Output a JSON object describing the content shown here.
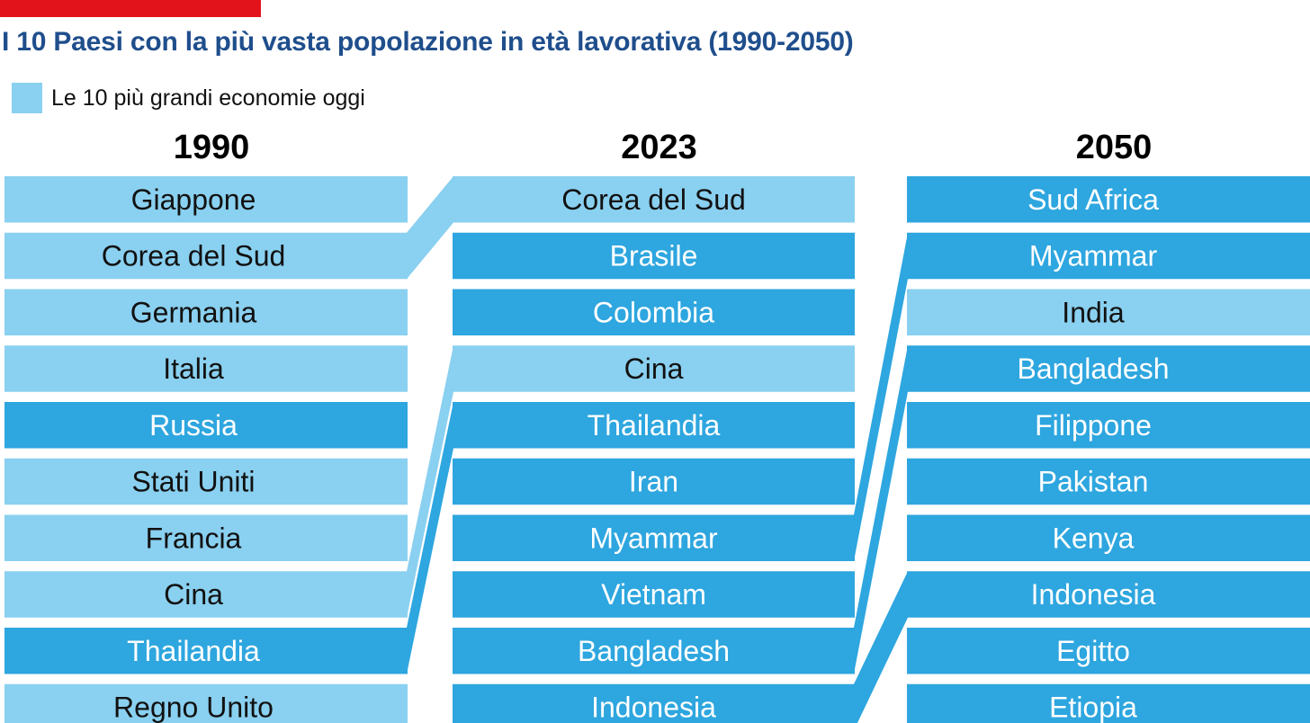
{
  "title": "I 10 Paesi con la più vasta popolazione in età lavorativa (1990-2050)",
  "legend": {
    "label": "Le 10 più grandi economie oggi"
  },
  "colors": {
    "brand_red": "#e3131b",
    "title_blue": "#1f4e8c",
    "top_economy": "#8ad0f0",
    "other": "#2ea6df",
    "text_on_light": "#111111",
    "text_on_dark": "#ffffff"
  },
  "chart_data": {
    "type": "table",
    "columns": [
      {
        "year": "1990",
        "rows": [
          {
            "country": "Giappone",
            "top_economy": true
          },
          {
            "country": "Corea del Sud",
            "top_economy": true
          },
          {
            "country": "Germania",
            "top_economy": true
          },
          {
            "country": "Italia",
            "top_economy": true
          },
          {
            "country": "Russia",
            "top_economy": false
          },
          {
            "country": "Stati Uniti",
            "top_economy": true
          },
          {
            "country": "Francia",
            "top_economy": true
          },
          {
            "country": "Cina",
            "top_economy": true
          },
          {
            "country": "Thailandia",
            "top_economy": false
          },
          {
            "country": "Regno Unito",
            "top_economy": true
          }
        ]
      },
      {
        "year": "2023",
        "rows": [
          {
            "country": "Corea del Sud",
            "top_economy": true
          },
          {
            "country": "Brasile",
            "top_economy": false
          },
          {
            "country": "Colombia",
            "top_economy": false
          },
          {
            "country": "Cina",
            "top_economy": true
          },
          {
            "country": "Thailandia",
            "top_economy": false
          },
          {
            "country": "Iran",
            "top_economy": false
          },
          {
            "country": "Myammar",
            "top_economy": false
          },
          {
            "country": "Vietnam",
            "top_economy": false
          },
          {
            "country": "Bangladesh",
            "top_economy": false
          },
          {
            "country": "Indonesia",
            "top_economy": false
          }
        ]
      },
      {
        "year": "2050",
        "rows": [
          {
            "country": "Sud Africa",
            "top_economy": false
          },
          {
            "country": "Myammar",
            "top_economy": false
          },
          {
            "country": "India",
            "top_economy": true
          },
          {
            "country": "Bangladesh",
            "top_economy": false
          },
          {
            "country": "Filippone",
            "top_economy": false
          },
          {
            "country": "Pakistan",
            "top_economy": false
          },
          {
            "country": "Kenya",
            "top_economy": false
          },
          {
            "country": "Indonesia",
            "top_economy": false
          },
          {
            "country": "Egitto",
            "top_economy": false
          },
          {
            "country": "Etiopia",
            "top_economy": false
          }
        ]
      }
    ],
    "links": [
      {
        "from_column": 0,
        "from_rank": 2,
        "to_column": 1,
        "to_rank": 1,
        "country": "Corea del Sud"
      },
      {
        "from_column": 0,
        "from_rank": 8,
        "to_column": 1,
        "to_rank": 4,
        "country": "Cina"
      },
      {
        "from_column": 0,
        "from_rank": 9,
        "to_column": 1,
        "to_rank": 5,
        "country": "Thailandia"
      },
      {
        "from_column": 1,
        "from_rank": 7,
        "to_column": 2,
        "to_rank": 2,
        "country": "Myammar"
      },
      {
        "from_column": 1,
        "from_rank": 9,
        "to_column": 2,
        "to_rank": 4,
        "country": "Bangladesh"
      },
      {
        "from_column": 1,
        "from_rank": 10,
        "to_column": 2,
        "to_rank": 8,
        "country": "Indonesia"
      }
    ]
  }
}
